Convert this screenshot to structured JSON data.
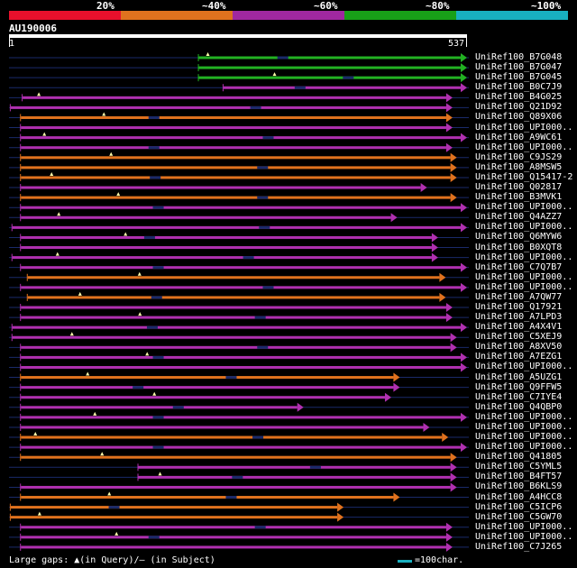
{
  "legend": {
    "segments": [
      {
        "label": "20%",
        "color": "#e8102c"
      },
      {
        "label": "~40%",
        "color": "#e0721e"
      },
      {
        "label": "~60%",
        "color": "#a028a0"
      },
      {
        "label": "~80%",
        "color": "#18a018"
      },
      {
        "label": "~100%",
        "color": "#18b0c0"
      }
    ]
  },
  "query": {
    "id": "AU190006",
    "start": "1",
    "end": "537",
    "length": 537
  },
  "colors": {
    "green": "#22b022",
    "orange": "#e0721e",
    "magenta": "#b030b0",
    "line": "#1a2a6a",
    "marker": "#ffffaa"
  },
  "hits": [
    {
      "label": "UniRef100_B7G048",
      "color": "green",
      "start": 223,
      "end": 537
    },
    {
      "label": "UniRef100_B7G047",
      "color": "green",
      "start": 223,
      "end": 537
    },
    {
      "label": "UniRef100_B7G045",
      "color": "green",
      "start": 223,
      "end": 537
    },
    {
      "label": "UniRef100_B0C7J9",
      "color": "magenta",
      "start": 252,
      "end": 537
    },
    {
      "label": "UniRef100_B4G025",
      "color": "magenta",
      "start": 16,
      "end": 520
    },
    {
      "label": "UniRef100_Q21D92",
      "color": "magenta",
      "start": 2,
      "end": 520
    },
    {
      "label": "UniRef100_Q89X06",
      "color": "orange",
      "start": 14,
      "end": 520
    },
    {
      "label": "UniRef100_UPI000..",
      "color": "magenta",
      "start": 14,
      "end": 520
    },
    {
      "label": "UniRef100_A9WC61",
      "color": "magenta",
      "start": 14,
      "end": 537
    },
    {
      "label": "UniRef100_UPI000..",
      "color": "magenta",
      "start": 14,
      "end": 520
    },
    {
      "label": "UniRef100_C9JS29",
      "color": "orange",
      "start": 14,
      "end": 525
    },
    {
      "label": "UniRef100_A8MSW5",
      "color": "orange",
      "start": 14,
      "end": 525
    },
    {
      "label": "UniRef100_Q15417-2",
      "color": "orange",
      "start": 14,
      "end": 525
    },
    {
      "label": "UniRef100_Q02817",
      "color": "magenta",
      "start": 14,
      "end": 490
    },
    {
      "label": "UniRef100_B3MVK1",
      "color": "orange",
      "start": 14,
      "end": 525
    },
    {
      "label": "UniRef100_UPI000..",
      "color": "magenta",
      "start": 14,
      "end": 537
    },
    {
      "label": "UniRef100_Q4AZZ7",
      "color": "magenta",
      "start": 14,
      "end": 455
    },
    {
      "label": "UniRef100_UPI000..",
      "color": "magenta",
      "start": 4,
      "end": 537
    },
    {
      "label": "UniRef100_Q6MYW6",
      "color": "magenta",
      "start": 14,
      "end": 503
    },
    {
      "label": "UniRef100_B0XQT8",
      "color": "magenta",
      "start": 14,
      "end": 503
    },
    {
      "label": "UniRef100_UPI000..",
      "color": "magenta",
      "start": 4,
      "end": 503
    },
    {
      "label": "UniRef100_C7Q7B7",
      "color": "magenta",
      "start": 14,
      "end": 537
    },
    {
      "label": "UniRef100_UPI000..",
      "color": "orange",
      "start": 22,
      "end": 512
    },
    {
      "label": "UniRef100_UPI000..",
      "color": "magenta",
      "start": 14,
      "end": 537
    },
    {
      "label": "UniRef100_A7QW77",
      "color": "orange",
      "start": 22,
      "end": 512
    },
    {
      "label": "UniRef100_Q17921",
      "color": "magenta",
      "start": 14,
      "end": 520
    },
    {
      "label": "UniRef100_A7LPD3",
      "color": "magenta",
      "start": 14,
      "end": 520
    },
    {
      "label": "UniRef100_A4X4V1",
      "color": "magenta",
      "start": 4,
      "end": 537
    },
    {
      "label": "UniRef100_C5XEJ9",
      "color": "magenta",
      "start": 4,
      "end": 525
    },
    {
      "label": "UniRef100_A8XV50",
      "color": "magenta",
      "start": 14,
      "end": 525
    },
    {
      "label": "UniRef100_A7EZG1",
      "color": "magenta",
      "start": 14,
      "end": 537
    },
    {
      "label": "UniRef100_UPI000..",
      "color": "magenta",
      "start": 14,
      "end": 537
    },
    {
      "label": "UniRef100_A5UZG1",
      "color": "orange",
      "start": 14,
      "end": 458
    },
    {
      "label": "UniRef100_Q9FFW5",
      "color": "magenta",
      "start": 14,
      "end": 458
    },
    {
      "label": "UniRef100_C7IYE4",
      "color": "magenta",
      "start": 14,
      "end": 448
    },
    {
      "label": "UniRef100_Q4QBP0",
      "color": "magenta",
      "start": 14,
      "end": 345
    },
    {
      "label": "UniRef100_UPI000..",
      "color": "magenta",
      "start": 14,
      "end": 537
    },
    {
      "label": "UniRef100_UPI000..",
      "color": "magenta",
      "start": 14,
      "end": 493
    },
    {
      "label": "UniRef100_UPI000..",
      "color": "orange",
      "start": 14,
      "end": 515
    },
    {
      "label": "UniRef100_UPI000..",
      "color": "magenta",
      "start": 14,
      "end": 537
    },
    {
      "label": "UniRef100_Q41805",
      "color": "orange",
      "start": 14,
      "end": 525
    },
    {
      "label": "UniRef100_C5YML5",
      "color": "magenta",
      "start": 152,
      "end": 525
    },
    {
      "label": "UniRef100_B4FT57",
      "color": "magenta",
      "start": 152,
      "end": 525
    },
    {
      "label": "UniRef100_B6KLS9",
      "color": "magenta",
      "start": 14,
      "end": 525
    },
    {
      "label": "UniRef100_A4HCC8",
      "color": "orange",
      "start": 14,
      "end": 458
    },
    {
      "label": "UniRef100_C5ICP6",
      "color": "orange",
      "start": 2,
      "end": 392
    },
    {
      "label": "UniRef100_C5GW70",
      "color": "orange",
      "start": 2,
      "end": 392
    },
    {
      "label": "UniRef100_UPI000..",
      "color": "magenta",
      "start": 14,
      "end": 520
    },
    {
      "label": "UniRef100_UPI000..",
      "color": "magenta",
      "start": 14,
      "end": 520
    },
    {
      "label": "UniRef100_C7J265",
      "color": "magenta",
      "start": 14,
      "end": 520
    }
  ],
  "footer": {
    "gaps_text": "Large gaps: ▲(in Query)/— (in Subject)",
    "scale_text": "=100char."
  }
}
